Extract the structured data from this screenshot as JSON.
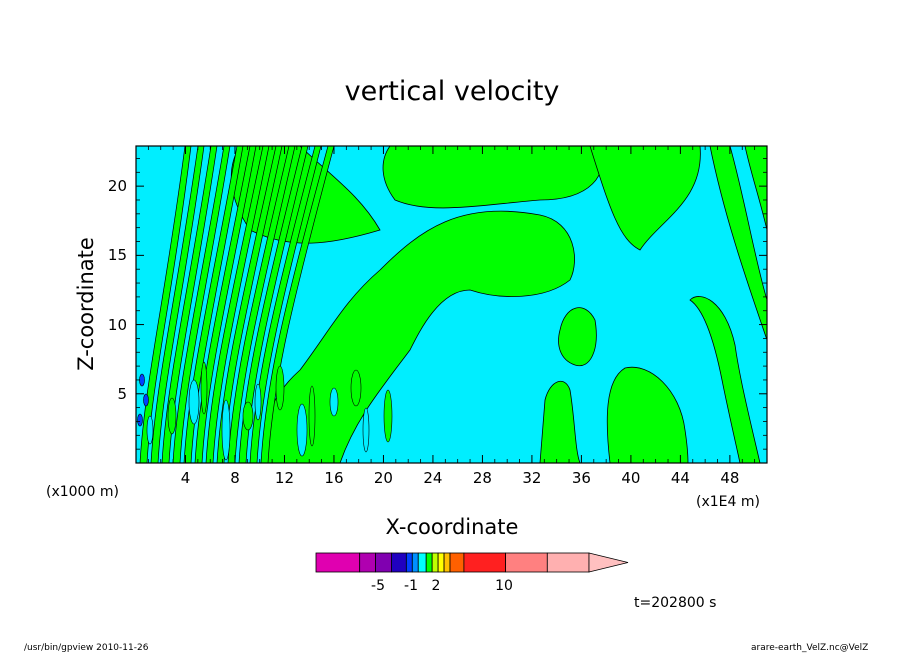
{
  "chart_data": {
    "type": "heatmap",
    "title": "vertical velocity",
    "xlabel": "X-coordinate",
    "ylabel": "Z-coordinate",
    "x_unit_left": "(x1000 m)",
    "x_unit_right": "(x1E4 m)",
    "xlim": [
      0,
      51
    ],
    "ylim": [
      0,
      22.9
    ],
    "x_ticks": [
      "4",
      "8",
      "12",
      "16",
      "20",
      "24",
      "28",
      "32",
      "36",
      "40",
      "44",
      "48"
    ],
    "x_tick_values": [
      4,
      8,
      12,
      16,
      20,
      24,
      28,
      32,
      36,
      40,
      44,
      48
    ],
    "y_ticks": [
      "5",
      "10",
      "15",
      "20"
    ],
    "y_tick_values": [
      5,
      10,
      15,
      20
    ],
    "colorbar": {
      "labels": [
        "-5",
        "-1",
        "2",
        "10"
      ],
      "label_positions": [
        -5,
        -1,
        2,
        10
      ],
      "colors": [
        "#e000b0",
        "#b000b0",
        "#8000b0",
        "#2000c0",
        "#0040ff",
        "#0090ff",
        "#00ffff",
        "#00ff00",
        "#c0ff00",
        "#ffff00",
        "#ffc000",
        "#ff6000",
        "#ff2020",
        "#ff8080",
        "#ffb0b0"
      ],
      "edges": [
        -20,
        -10,
        -7,
        -5,
        -4,
        -3,
        -1,
        0,
        1,
        2,
        3,
        5,
        10,
        15,
        20
      ]
    },
    "color_negative": "#00eeff",
    "color_positive": "#00ff00",
    "contour_regions": [
      {
        "level": "positive",
        "x": [
          9,
          12
        ],
        "z": [
          0,
          22.9
        ]
      },
      {
        "level": "positive",
        "x": [
          14,
          23
        ],
        "z": [
          0,
          12
        ]
      },
      {
        "level": "positive",
        "x": [
          18,
          32
        ],
        "z": [
          11,
          17
        ]
      },
      {
        "level": "positive",
        "x": [
          28,
          36
        ],
        "z": [
          15,
          22.9
        ]
      },
      {
        "level": "positive",
        "x": [
          37,
          44
        ],
        "z": [
          0,
          6
        ]
      },
      {
        "level": "positive",
        "x": [
          38,
          46
        ],
        "z": [
          14,
          22.9
        ]
      },
      {
        "level": "negative",
        "x": [
          23,
          34
        ],
        "z": [
          0,
          11
        ]
      },
      {
        "level": "negative",
        "x": [
          35,
          46
        ],
        "z": [
          6,
          14
        ]
      }
    ]
  },
  "timestamp": "t=202800 s",
  "footer": {
    "left": "/usr/bin/gpview   2010-11-26",
    "right": "arare-earth_VelZ.nc@VelZ"
  }
}
